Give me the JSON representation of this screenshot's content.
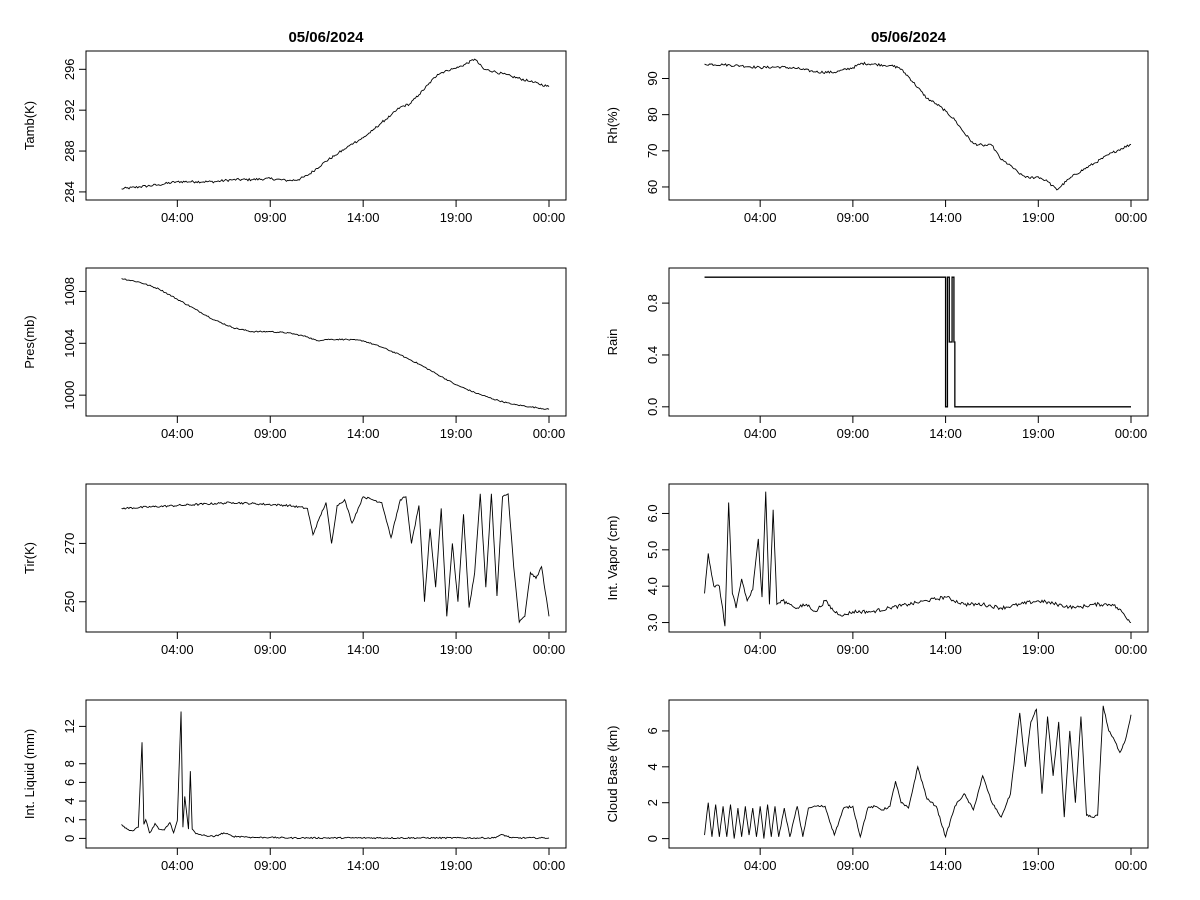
{
  "page": {
    "background": "#ffffff",
    "line_color": "#000000"
  },
  "chart_data": [
    {
      "type": "line",
      "id": "tamb",
      "title": "05/06/2024",
      "ylabel": "Tamb(K)",
      "xlabel": "",
      "xlim": [
        0,
        24
      ],
      "ylim": [
        283.6,
        297.4
      ],
      "xticks": [
        "04:00",
        "09:00",
        "14:00",
        "19:00",
        "00:00"
      ],
      "xtick_values": [
        4,
        9,
        14,
        19,
        24
      ],
      "yticks": [
        "284",
        "288",
        "292",
        "296"
      ],
      "ytick_values": [
        284,
        288,
        292,
        296
      ],
      "grid": false,
      "noise": 0.12,
      "series": [
        {
          "name": "Tamb",
          "x": [
            1,
            2,
            3,
            4,
            5,
            6,
            7,
            8,
            9,
            10,
            10.5,
            11,
            11.5,
            12,
            12.5,
            13,
            13.5,
            14,
            14.5,
            15,
            15.5,
            16,
            16.5,
            17,
            17.5,
            18,
            18.5,
            19,
            19.5,
            20,
            20.5,
            21,
            22,
            23,
            24
          ],
          "y": [
            284.3,
            284.5,
            284.7,
            285.0,
            285.0,
            285.0,
            285.2,
            285.2,
            285.3,
            285.1,
            285.2,
            285.6,
            286.3,
            287.0,
            287.6,
            288.2,
            288.8,
            289.3,
            290.0,
            290.8,
            291.5,
            292.3,
            292.6,
            293.5,
            294.5,
            295.5,
            295.9,
            296.1,
            296.5,
            297.0,
            296.0,
            295.8,
            295.3,
            294.8,
            294.3
          ]
        }
      ]
    },
    {
      "type": "line",
      "id": "rh",
      "title": "05/06/2024",
      "ylabel": "Rh(%)",
      "xlabel": "",
      "xlim": [
        0,
        24
      ],
      "ylim": [
        57.5,
        96.5
      ],
      "xticks": [
        "04:00",
        "09:00",
        "14:00",
        "19:00",
        "00:00"
      ],
      "xtick_values": [
        4,
        9,
        14,
        19,
        24
      ],
      "yticks": [
        "60",
        "70",
        "80",
        "90"
      ],
      "ytick_values": [
        60,
        70,
        80,
        90
      ],
      "grid": false,
      "noise": 0.35,
      "series": [
        {
          "name": "Rh",
          "x": [
            1,
            2,
            3,
            4,
            5,
            6,
            7,
            8,
            9,
            9.5,
            10,
            11,
            11.5,
            12,
            12.5,
            13,
            13.5,
            14,
            14.5,
            15,
            15.5,
            16,
            16.5,
            17,
            17.5,
            18,
            18.5,
            19,
            19.5,
            20,
            20.5,
            21,
            22,
            23,
            24
          ],
          "y": [
            94,
            93.8,
            93.5,
            93.0,
            93.2,
            92.8,
            91.8,
            91.7,
            93.0,
            94.2,
            94.0,
            93.6,
            93.0,
            90.5,
            87.5,
            84.5,
            83.0,
            81.0,
            78.5,
            75.0,
            72.0,
            71.5,
            71.5,
            67.5,
            66.0,
            63.5,
            62.5,
            62.8,
            61.5,
            59.2,
            61.5,
            63.5,
            66.5,
            69.5,
            71.8
          ]
        }
      ]
    },
    {
      "type": "line",
      "id": "pres",
      "title": "",
      "ylabel": "Pres(mb)",
      "xlabel": "",
      "xlim": [
        0,
        24
      ],
      "ylim": [
        998.7,
        1009.5
      ],
      "xticks": [
        "04:00",
        "09:00",
        "14:00",
        "19:00",
        "00:00"
      ],
      "xtick_values": [
        4,
        9,
        14,
        19,
        24
      ],
      "yticks": [
        "1000",
        "1004",
        "1008"
      ],
      "ytick_values": [
        1000,
        1004,
        1008
      ],
      "grid": false,
      "noise": 0.05,
      "series": [
        {
          "name": "Pres",
          "x": [
            1,
            2,
            3,
            4,
            5,
            6,
            7,
            8,
            9,
            10,
            11,
            11.5,
            12,
            13,
            14,
            15,
            16,
            17,
            18,
            19,
            20,
            21,
            22,
            23,
            24
          ],
          "y": [
            1009.0,
            1008.7,
            1008.2,
            1007.4,
            1006.6,
            1005.8,
            1005.2,
            1004.9,
            1004.9,
            1004.8,
            1004.5,
            1004.2,
            1004.3,
            1004.3,
            1004.2,
            1003.7,
            1003.1,
            1002.4,
            1001.6,
            1000.8,
            1000.2,
            999.7,
            999.3,
            999.1,
            998.9
          ]
        }
      ]
    },
    {
      "type": "line",
      "id": "rain",
      "title": "",
      "ylabel": "Rain",
      "xlabel": "",
      "xlim": [
        0,
        24
      ],
      "ylim": [
        -0.04,
        1.04
      ],
      "xticks": [
        "04:00",
        "09:00",
        "14:00",
        "19:00",
        "00:00"
      ],
      "xtick_values": [
        4,
        9,
        14,
        19,
        24
      ],
      "yticks": [
        "0.0",
        "0.4",
        "0.8"
      ],
      "ytick_values": [
        0.0,
        0.4,
        0.8
      ],
      "grid": false,
      "noise": 0,
      "series": [
        {
          "name": "Rain",
          "x": [
            1,
            14.0,
            14.0,
            14.1,
            14.1,
            14.2,
            14.2,
            14.35,
            14.35,
            14.45,
            14.45,
            14.5,
            14.5,
            24
          ],
          "y": [
            1,
            1,
            0,
            0,
            1,
            1,
            0.5,
            0.5,
            1,
            1,
            0.5,
            0.5,
            0,
            0
          ]
        }
      ]
    },
    {
      "type": "line",
      "id": "tir",
      "title": "",
      "ylabel": "Tir(K)",
      "xlabel": "",
      "xlim": [
        0,
        24
      ],
      "ylim": [
        241,
        289
      ],
      "xticks": [
        "04:00",
        "09:00",
        "14:00",
        "19:00",
        "00:00"
      ],
      "xtick_values": [
        4,
        9,
        14,
        19,
        24
      ],
      "yticks": [
        "250",
        "270"
      ],
      "ytick_values": [
        250,
        270
      ],
      "grid": false,
      "noise": 0.35,
      "series": [
        {
          "name": "Tir",
          "x": [
            1,
            4,
            7,
            10,
            11,
            11.3,
            11.6,
            12,
            12.3,
            12.6,
            13,
            13.4,
            14,
            14.5,
            15,
            15.5,
            16,
            16.3,
            16.6,
            17,
            17.3,
            17.6,
            17.9,
            18.2,
            18.5,
            18.8,
            19.1,
            19.4,
            19.7,
            20,
            20.3,
            20.6,
            20.9,
            21.2,
            21.5,
            21.8,
            22.1,
            22.4,
            22.7,
            23,
            23.3,
            23.6,
            24
          ],
          "y": [
            282,
            283,
            284,
            283,
            282,
            273,
            278,
            284,
            270,
            283,
            285,
            277,
            286,
            285,
            284,
            272,
            285,
            286,
            270,
            283,
            250,
            275,
            255,
            282,
            245,
            270,
            250,
            280,
            248,
            260,
            287,
            255,
            287,
            252,
            286,
            287,
            262,
            243,
            245,
            260,
            258,
            262,
            245
          ]
        }
      ]
    },
    {
      "type": "line",
      "id": "vapor",
      "title": "",
      "ylabel": "Int. Vapor (cm)",
      "xlabel": "",
      "xlim": [
        0,
        24
      ],
      "ylim": [
        2.85,
        6.7
      ],
      "xticks": [
        "04:00",
        "09:00",
        "14:00",
        "19:00",
        "00:00"
      ],
      "xtick_values": [
        4,
        9,
        14,
        19,
        24
      ],
      "yticks": [
        "3.0",
        "4.0",
        "5.0",
        "6.0"
      ],
      "ytick_values": [
        3.0,
        4.0,
        5.0,
        6.0
      ],
      "grid": false,
      "noise": 0.05,
      "series": [
        {
          "name": "Int. Vapor",
          "x": [
            1,
            1.2,
            1.5,
            1.8,
            2.1,
            2.3,
            2.5,
            2.7,
            3.0,
            3.3,
            3.6,
            3.9,
            4.1,
            4.3,
            4.5,
            4.7,
            4.9,
            5.2,
            5.6,
            6,
            6.5,
            7,
            7.5,
            8,
            8.5,
            9,
            10,
            11,
            12,
            13,
            14,
            15,
            16,
            17,
            18,
            19,
            20,
            21,
            22,
            23,
            23.5,
            24
          ],
          "y": [
            3.8,
            4.9,
            4.0,
            4.0,
            2.9,
            6.3,
            3.8,
            3.4,
            4.2,
            3.6,
            3.9,
            5.3,
            3.7,
            6.6,
            3.5,
            6.1,
            3.5,
            3.6,
            3.5,
            3.4,
            3.5,
            3.3,
            3.6,
            3.3,
            3.2,
            3.3,
            3.3,
            3.4,
            3.5,
            3.6,
            3.7,
            3.5,
            3.5,
            3.4,
            3.5,
            3.6,
            3.5,
            3.4,
            3.5,
            3.5,
            3.3,
            3.0
          ]
        }
      ]
    },
    {
      "type": "line",
      "id": "liquid",
      "title": "",
      "ylabel": "Int. Liquid (mm)",
      "xlabel": "",
      "xlim": [
        0,
        24
      ],
      "ylim": [
        -0.6,
        14.4
      ],
      "xticks": [
        "04:00",
        "09:00",
        "14:00",
        "19:00",
        "00:00"
      ],
      "xtick_values": [
        4,
        9,
        14,
        19,
        24
      ],
      "yticks": [
        "0",
        "2",
        "4",
        "6",
        "8",
        "12"
      ],
      "ytick_values": [
        0,
        2,
        4,
        6,
        8,
        12
      ],
      "grid": false,
      "noise": 0.08,
      "series": [
        {
          "name": "Int. Liquid",
          "x": [
            1,
            1.3,
            1.6,
            1.9,
            2.1,
            2.2,
            2.3,
            2.5,
            2.6,
            2.8,
            3.0,
            3.3,
            3.6,
            3.8,
            4.0,
            4.2,
            4.3,
            4.4,
            4.6,
            4.7,
            4.8,
            5.0,
            5.5,
            6,
            6.5,
            7,
            7.5,
            8,
            9,
            10,
            11,
            12,
            14,
            16,
            18,
            20,
            21,
            21.5,
            22,
            24
          ],
          "y": [
            1.5,
            1.0,
            0.8,
            1.2,
            10.3,
            1.5,
            2.0,
            0.6,
            0.8,
            1.6,
            1.0,
            0.9,
            1.7,
            0.6,
            1.9,
            13.6,
            1.2,
            4.5,
            1.0,
            7.2,
            1.0,
            0.5,
            0.3,
            0.2,
            0.6,
            0.2,
            0.2,
            0.1,
            0.1,
            0.05,
            0.05,
            0.05,
            0.05,
            0.05,
            0.05,
            0.05,
            0.05,
            0.4,
            0.05,
            0.05
          ]
        }
      ]
    },
    {
      "type": "line",
      "id": "cloud",
      "title": "",
      "ylabel": "Cloud Base (km)",
      "xlabel": "",
      "xlim": [
        0,
        24
      ],
      "ylim": [
        -0.3,
        7.5
      ],
      "xticks": [
        "04:00",
        "09:00",
        "14:00",
        "19:00",
        "00:00"
      ],
      "xtick_values": [
        4,
        9,
        14,
        19,
        24
      ],
      "yticks": [
        "0",
        "2",
        "4",
        "6"
      ],
      "ytick_values": [
        0,
        2,
        4,
        6
      ],
      "grid": false,
      "noise": 0.06,
      "series": [
        {
          "name": "Cloud Base",
          "x": [
            1,
            1.2,
            1.4,
            1.6,
            1.8,
            2.0,
            2.2,
            2.4,
            2.6,
            2.8,
            3.0,
            3.2,
            3.4,
            3.6,
            3.8,
            4.0,
            4.2,
            4.4,
            4.6,
            4.8,
            5.0,
            5.3,
            5.6,
            6,
            6.3,
            6.6,
            7,
            7.5,
            8,
            8.5,
            9,
            9.4,
            9.8,
            10.2,
            10.6,
            11,
            11.3,
            11.6,
            12,
            12.5,
            13,
            13.5,
            14,
            14.5,
            15,
            15.5,
            16,
            16.5,
            17,
            17.5,
            18,
            18.3,
            18.6,
            18.9,
            19.2,
            19.5,
            19.8,
            20.1,
            20.4,
            20.7,
            21,
            21.3,
            21.6,
            21.9,
            22.2,
            22.5,
            22.8,
            23.1,
            23.4,
            23.7,
            24
          ],
          "y": [
            0.2,
            2.0,
            0.1,
            1.9,
            0.1,
            1.8,
            0.1,
            1.9,
            0.0,
            1.7,
            0.1,
            1.8,
            0.2,
            1.7,
            0.1,
            1.8,
            0.0,
            1.9,
            0.1,
            1.8,
            0.1,
            1.7,
            0.1,
            1.8,
            0.1,
            1.7,
            1.8,
            1.8,
            0.2,
            1.7,
            1.8,
            0.1,
            1.7,
            1.8,
            1.6,
            1.8,
            3.2,
            2.0,
            1.7,
            4.0,
            2.2,
            1.8,
            0.1,
            1.8,
            2.5,
            1.6,
            3.5,
            2.0,
            1.2,
            2.5,
            7.0,
            4.0,
            6.5,
            7.2,
            2.5,
            6.8,
            3.5,
            6.5,
            1.2,
            6.0,
            2.0,
            6.8,
            1.3,
            1.2,
            1.3,
            7.4,
            6.0,
            5.5,
            4.8,
            5.5,
            6.9
          ]
        }
      ]
    }
  ]
}
